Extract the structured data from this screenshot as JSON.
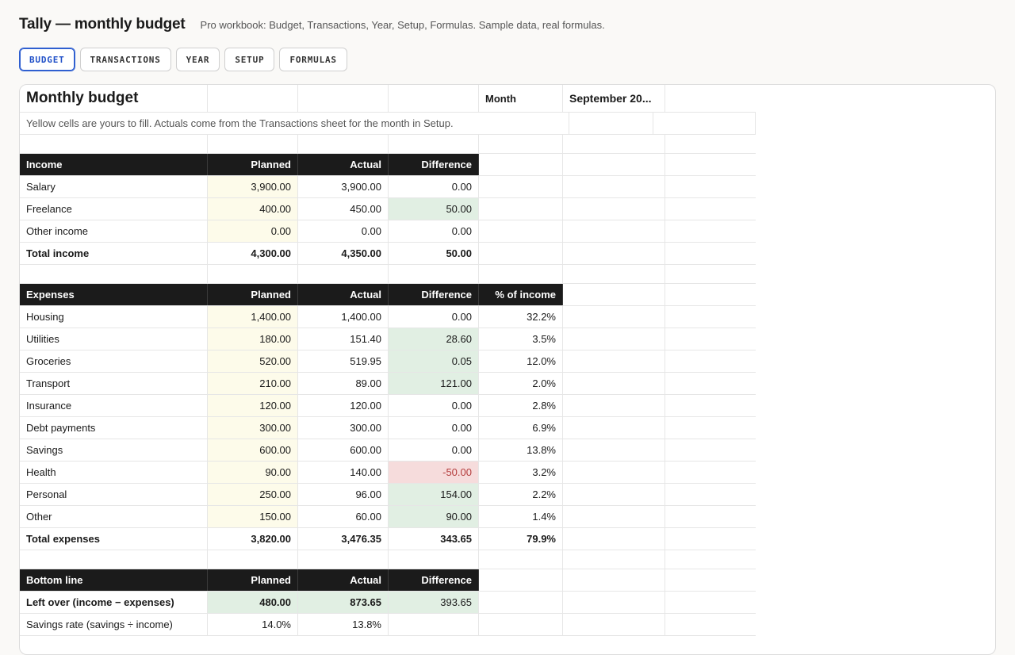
{
  "app": {
    "title": "Tally — monthly budget",
    "subtitle": "Pro workbook: Budget, Transactions, Year, Setup, Formulas. Sample data, real formulas."
  },
  "tabs": [
    "BUDGET",
    "TRANSACTIONS",
    "YEAR",
    "SETUP",
    "FORMULAS"
  ],
  "active_tab": "BUDGET",
  "sheet": {
    "title": "Monthly budget",
    "month_label": "Month",
    "month_value": "September 20...",
    "note": "Yellow cells are yours to fill. Actuals come from the Transactions sheet for the month in Setup.",
    "income": {
      "headers": [
        "Income",
        "Planned",
        "Actual",
        "Difference"
      ],
      "rows": [
        {
          "label": "Salary",
          "planned": "3,900.00",
          "actual": "3,900.00",
          "diff": "0.00"
        },
        {
          "label": "Freelance",
          "planned": "400.00",
          "actual": "450.00",
          "diff": "50.00"
        },
        {
          "label": "Other income",
          "planned": "0.00",
          "actual": "0.00",
          "diff": "0.00"
        }
      ],
      "total": {
        "label": "Total income",
        "planned": "4,300.00",
        "actual": "4,350.00",
        "diff": "50.00"
      }
    },
    "expenses": {
      "headers": [
        "Expenses",
        "Planned",
        "Actual",
        "Difference",
        "% of income"
      ],
      "rows": [
        {
          "label": "Housing",
          "planned": "1,400.00",
          "actual": "1,400.00",
          "diff": "0.00",
          "pct": "32.2%"
        },
        {
          "label": "Utilities",
          "planned": "180.00",
          "actual": "151.40",
          "diff": "28.60",
          "pct": "3.5%"
        },
        {
          "label": "Groceries",
          "planned": "520.00",
          "actual": "519.95",
          "diff": "0.05",
          "pct": "12.0%"
        },
        {
          "label": "Transport",
          "planned": "210.00",
          "actual": "89.00",
          "diff": "121.00",
          "pct": "2.0%"
        },
        {
          "label": "Insurance",
          "planned": "120.00",
          "actual": "120.00",
          "diff": "0.00",
          "pct": "2.8%"
        },
        {
          "label": "Debt payments",
          "planned": "300.00",
          "actual": "300.00",
          "diff": "0.00",
          "pct": "6.9%"
        },
        {
          "label": "Savings",
          "planned": "600.00",
          "actual": "600.00",
          "diff": "0.00",
          "pct": "13.8%"
        },
        {
          "label": "Health",
          "planned": "90.00",
          "actual": "140.00",
          "diff": "-50.00",
          "pct": "3.2%"
        },
        {
          "label": "Personal",
          "planned": "250.00",
          "actual": "96.00",
          "diff": "154.00",
          "pct": "2.2%"
        },
        {
          "label": "Other",
          "planned": "150.00",
          "actual": "60.00",
          "diff": "90.00",
          "pct": "1.4%"
        }
      ],
      "total": {
        "label": "Total expenses",
        "planned": "3,820.00",
        "actual": "3,476.35",
        "diff": "343.65",
        "pct": "79.9%"
      }
    },
    "bottom": {
      "headers": [
        "Bottom line",
        "Planned",
        "Actual",
        "Difference"
      ],
      "left_over": {
        "label": "Left over (income − expenses)",
        "planned": "480.00",
        "actual": "873.65",
        "diff": "393.65"
      },
      "savings_rate": {
        "label": "Savings rate (savings ÷ income)",
        "planned": "14.0%",
        "actual": "13.8%"
      }
    }
  }
}
